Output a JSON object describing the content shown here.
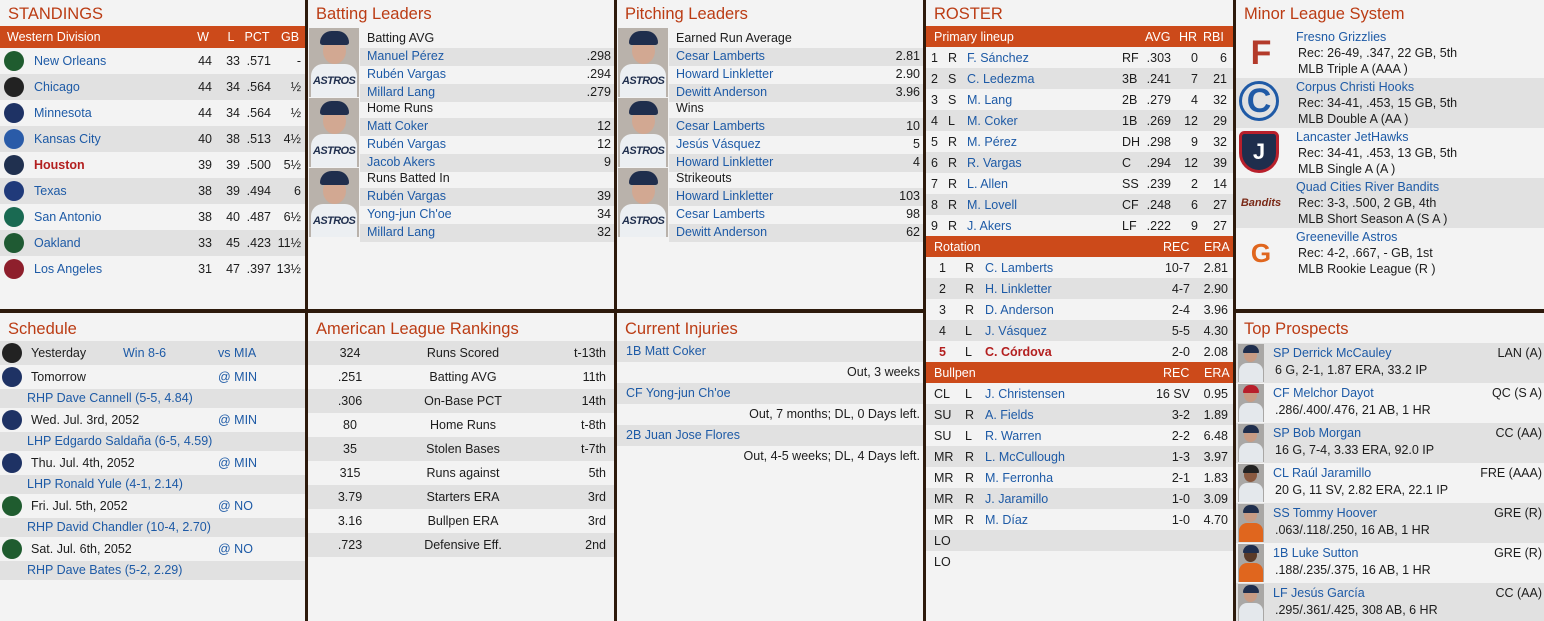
{
  "standings": {
    "title": "STANDINGS",
    "header": {
      "division": "Western Division",
      "w": "W",
      "l": "L",
      "pct": "PCT",
      "gb": "GB"
    },
    "rows": [
      {
        "team": "New Orleans",
        "w": "44",
        "l": "33",
        "pct": ".571",
        "gb": "-",
        "color": "#1f5c2f"
      },
      {
        "team": "Chicago",
        "w": "44",
        "l": "34",
        "pct": ".564",
        "gb": "½",
        "color": "#222222"
      },
      {
        "team": "Minnesota",
        "w": "44",
        "l": "34",
        "pct": ".564",
        "gb": "½",
        "color": "#1e3264"
      },
      {
        "team": "Kansas City",
        "w": "40",
        "l": "38",
        "pct": ".513",
        "gb": "4½",
        "color": "#2a5ba8"
      },
      {
        "team": "Houston",
        "w": "39",
        "l": "39",
        "pct": ".500",
        "gb": "5½",
        "color": "#20304f"
      },
      {
        "team": "Texas",
        "w": "38",
        "l": "39",
        "pct": ".494",
        "gb": "6",
        "color": "#203a7a"
      },
      {
        "team": "San Antonio",
        "w": "38",
        "l": "40",
        "pct": ".487",
        "gb": "6½",
        "color": "#1a6a52"
      },
      {
        "team": "Oakland",
        "w": "33",
        "l": "45",
        "pct": ".423",
        "gb": "11½",
        "color": "#1f5a33"
      },
      {
        "team": "Los Angeles",
        "w": "31",
        "l": "47",
        "pct": ".397",
        "gb": "13½",
        "color": "#8e1f2c"
      }
    ]
  },
  "batting": {
    "title": "Batting Leaders",
    "groups": [
      {
        "label": "Batting AVG",
        "photo_text": "ASTROS",
        "rows": [
          {
            "name": "Manuel Pérez",
            "val": ".298"
          },
          {
            "name": "Rubén Vargas",
            "val": ".294"
          },
          {
            "name": "Millard Lang",
            "val": ".279"
          }
        ]
      },
      {
        "label": "Home Runs",
        "photo_text": "ASTROS",
        "rows": [
          {
            "name": "Matt Coker",
            "val": "12"
          },
          {
            "name": "Rubén Vargas",
            "val": "12"
          },
          {
            "name": "Jacob Akers",
            "val": "9"
          }
        ]
      },
      {
        "label": "Runs Batted In",
        "photo_text": "ASTROS",
        "rows": [
          {
            "name": "Rubén Vargas",
            "val": "39"
          },
          {
            "name": "Yong-jun Ch'oe",
            "val": "34"
          },
          {
            "name": "Millard Lang",
            "val": "32"
          }
        ]
      }
    ]
  },
  "pitching": {
    "title": "Pitching Leaders",
    "groups": [
      {
        "label": "Earned Run Average",
        "photo_text": "ASTROS",
        "rows": [
          {
            "name": "Cesar Lamberts",
            "val": "2.81"
          },
          {
            "name": "Howard Linkletter",
            "val": "2.90"
          },
          {
            "name": "Dewitt Anderson",
            "val": "3.96"
          }
        ]
      },
      {
        "label": "Wins",
        "photo_text": "ASTROS",
        "rows": [
          {
            "name": "Cesar Lamberts",
            "val": "10"
          },
          {
            "name": "Jesús Vásquez",
            "val": "5"
          },
          {
            "name": "Howard Linkletter",
            "val": "4"
          }
        ]
      },
      {
        "label": "Strikeouts",
        "photo_text": "ASTROS",
        "rows": [
          {
            "name": "Howard Linkletter",
            "val": "103"
          },
          {
            "name": "Cesar Lamberts",
            "val": "98"
          },
          {
            "name": "Dewitt Anderson",
            "val": "62"
          }
        ]
      }
    ]
  },
  "roster": {
    "title": "ROSTER",
    "lineup_header": {
      "label": "Primary lineup",
      "avg": "AVG",
      "hr": "HR",
      "rbi": "RBI"
    },
    "lineup": [
      {
        "n": "1",
        "b": "R",
        "name": "F. Sánchez",
        "pos": "RF",
        "avg": ".303",
        "hr": "0",
        "rbi": "6"
      },
      {
        "n": "2",
        "b": "S",
        "name": "C. Ledezma",
        "pos": "3B",
        "avg": ".241",
        "hr": "7",
        "rbi": "21"
      },
      {
        "n": "3",
        "b": "S",
        "name": "M. Lang",
        "pos": "2B",
        "avg": ".279",
        "hr": "4",
        "rbi": "32"
      },
      {
        "n": "4",
        "b": "L",
        "name": "M. Coker",
        "pos": "1B",
        "avg": ".269",
        "hr": "12",
        "rbi": "29"
      },
      {
        "n": "5",
        "b": "R",
        "name": "M. Pérez",
        "pos": "DH",
        "avg": ".298",
        "hr": "9",
        "rbi": "32"
      },
      {
        "n": "6",
        "b": "R",
        "name": "R. Vargas",
        "pos": "C",
        "avg": ".294",
        "hr": "12",
        "rbi": "39"
      },
      {
        "n": "7",
        "b": "R",
        "name": "L. Allen",
        "pos": "SS",
        "avg": ".239",
        "hr": "2",
        "rbi": "14"
      },
      {
        "n": "8",
        "b": "R",
        "name": "M. Lovell",
        "pos": "CF",
        "avg": ".248",
        "hr": "6",
        "rbi": "27"
      },
      {
        "n": "9",
        "b": "R",
        "name": "J. Akers",
        "pos": "LF",
        "avg": ".222",
        "hr": "9",
        "rbi": "27"
      }
    ],
    "rotation_header": {
      "label": "Rotation",
      "rec": "REC",
      "era": "ERA"
    },
    "rotation": [
      {
        "n": "1",
        "t": "R",
        "name": "C. Lamberts",
        "rec": "10-7",
        "era": "2.81",
        "highlight": false
      },
      {
        "n": "2",
        "t": "R",
        "name": "H. Linkletter",
        "rec": "4-7",
        "era": "2.90",
        "highlight": false
      },
      {
        "n": "3",
        "t": "R",
        "name": "D. Anderson",
        "rec": "2-4",
        "era": "3.96",
        "highlight": false
      },
      {
        "n": "4",
        "t": "L",
        "name": "J. Vásquez",
        "rec": "5-5",
        "era": "4.30",
        "highlight": false
      },
      {
        "n": "5",
        "t": "L",
        "name": "C. Córdova",
        "rec": "2-0",
        "era": "2.08",
        "highlight": true
      }
    ],
    "bullpen_header": {
      "label": "Bullpen",
      "rec": "REC",
      "era": "ERA"
    },
    "bullpen": [
      {
        "role": "CL",
        "t": "L",
        "name": "J. Christensen",
        "rec": "16 SV",
        "era": "0.95"
      },
      {
        "role": "SU",
        "t": "R",
        "name": "A. Fields",
        "rec": "3-2",
        "era": "1.89"
      },
      {
        "role": "SU",
        "t": "L",
        "name": "R. Warren",
        "rec": "2-2",
        "era": "6.48"
      },
      {
        "role": "MR",
        "t": "R",
        "name": "L. McCullough",
        "rec": "1-3",
        "era": "3.97"
      },
      {
        "role": "MR",
        "t": "R",
        "name": "M. Ferronha",
        "rec": "2-1",
        "era": "1.83"
      },
      {
        "role": "MR",
        "t": "R",
        "name": "J. Jaramillo",
        "rec": "1-0",
        "era": "3.09"
      },
      {
        "role": "MR",
        "t": "R",
        "name": "M. Díaz",
        "rec": "1-0",
        "era": "4.70"
      },
      {
        "role": "LO",
        "t": "",
        "name": "",
        "rec": "",
        "era": ""
      },
      {
        "role": "LO",
        "t": "",
        "name": "",
        "rec": "",
        "era": ""
      }
    ]
  },
  "minors": {
    "title": "Minor League System",
    "teams": [
      {
        "name": "Fresno Grizzlies",
        "rec": "Rec: 26-49, .347, 22 GB, 5th",
        "level": "MLB Triple A (AAA )",
        "logo_text": "F",
        "logo_color": "#b33a2a"
      },
      {
        "name": "Corpus Christi Hooks",
        "rec": "Rec: 34-41, .453, 15 GB, 5th",
        "level": "MLB Double A (AA )",
        "logo_text": "C",
        "logo_color": "#1f5aa6"
      },
      {
        "name": "Lancaster JetHawks",
        "rec": "Rec: 34-41, .453, 13 GB, 5th",
        "level": "MLB Single A (A )",
        "logo_text": "J",
        "logo_color": "#b81f2b"
      },
      {
        "name": "Quad Cities River Bandits",
        "rec": "Rec: 3-3, .500, 2 GB, 4th",
        "level": "MLB Short Season A (S A )",
        "logo_text": "Bandits",
        "logo_color": "#7a2a18"
      },
      {
        "name": "Greeneville Astros",
        "rec": "Rec: 4-2, .667, - GB, 1st",
        "level": "MLB Rookie League (R )",
        "logo_text": "G",
        "logo_color": "#e0661e"
      }
    ]
  },
  "schedule": {
    "title": "Schedule",
    "games": [
      {
        "day": "Yesterday",
        "result": "Win 8-6",
        "opp": "vs MIA",
        "pitcher": "",
        "color": "#222222"
      },
      {
        "day": "Tomorrow",
        "result": "",
        "opp": "@ MIN",
        "pitcher": "RHP Dave Cannell (5-5, 4.84)",
        "color": "#1e3264"
      },
      {
        "day": "Wed. Jul. 3rd, 2052",
        "result": "",
        "opp": "@ MIN",
        "pitcher": "LHP Edgardo Saldaña (6-5, 4.59)",
        "color": "#1e3264"
      },
      {
        "day": "Thu. Jul. 4th, 2052",
        "result": "",
        "opp": "@ MIN",
        "pitcher": "LHP Ronald Yule (4-1, 2.14)",
        "color": "#1e3264"
      },
      {
        "day": "Fri. Jul. 5th, 2052",
        "result": "",
        "opp": "@ NO",
        "pitcher": "RHP David Chandler (10-4, 2.70)",
        "color": "#1f5c2f"
      },
      {
        "day": "Sat. Jul. 6th, 2052",
        "result": "",
        "opp": "@ NO",
        "pitcher": "RHP Dave Bates (5-2, 2.29)",
        "color": "#1f5c2f"
      }
    ]
  },
  "rankings": {
    "title": "American League Rankings",
    "rows": [
      {
        "val": "324",
        "label": "Runs Scored",
        "rank": "t-13th"
      },
      {
        "val": ".251",
        "label": "Batting AVG",
        "rank": "11th"
      },
      {
        "val": ".306",
        "label": "On-Base PCT",
        "rank": "14th"
      },
      {
        "val": "80",
        "label": "Home Runs",
        "rank": "t-8th"
      },
      {
        "val": "35",
        "label": "Stolen Bases",
        "rank": "t-7th"
      },
      {
        "val": "315",
        "label": "Runs against",
        "rank": "5th"
      },
      {
        "val": "3.79",
        "label": "Starters ERA",
        "rank": "3rd"
      },
      {
        "val": "3.16",
        "label": "Bullpen ERA",
        "rank": "3rd"
      },
      {
        "val": ".723",
        "label": "Defensive Eff.",
        "rank": "2nd"
      }
    ]
  },
  "injuries": {
    "title": "Current Injuries",
    "items": [
      {
        "player": "1B Matt Coker",
        "status": "Out, 3 weeks"
      },
      {
        "player": "CF Yong-jun Ch'oe",
        "status": "Out, 7 months; DL, 0 Days left."
      },
      {
        "player": "2B Juan Jose Flores",
        "status": "Out, 4-5 weeks; DL, 4 Days left."
      }
    ]
  },
  "prospects": {
    "title": "Top Prospects",
    "items": [
      {
        "name": "SP Derrick McCauley",
        "team": "LAN (A)",
        "stats": "6 G, 2-1, 1.87 ERA, 33.2 IP",
        "cap": "#1f2e4d"
      },
      {
        "name": "CF Melchor Dayot",
        "team": "QC (S A)",
        "stats": ".286/.400/.476, 21 AB, 1 HR",
        "cap": "#b81f2b"
      },
      {
        "name": "SP Bob Morgan",
        "team": "CC (AA)",
        "stats": "16 G, 7-4, 3.33 ERA, 92.0 IP",
        "cap": "#1f2e4d"
      },
      {
        "name": "CL Raúl Jaramillo",
        "team": "FRE (AAA)",
        "stats": "20 G, 11 SV, 2.82 ERA, 22.1 IP",
        "cap": "#222222"
      },
      {
        "name": "SS Tommy Hoover",
        "team": "GRE (R)",
        "stats": ".063/.118/.250, 16 AB, 1 HR",
        "cap": "#1f2e4d"
      },
      {
        "name": "1B Luke Sutton",
        "team": "GRE (R)",
        "stats": ".188/.235/.375, 16 AB, 1 HR",
        "cap": "#1f2e4d"
      },
      {
        "name": "LF Jesús García",
        "team": "CC (AA)",
        "stats": ".295/.361/.425, 308 AB, 6 HR",
        "cap": "#1f2e4d"
      }
    ]
  }
}
